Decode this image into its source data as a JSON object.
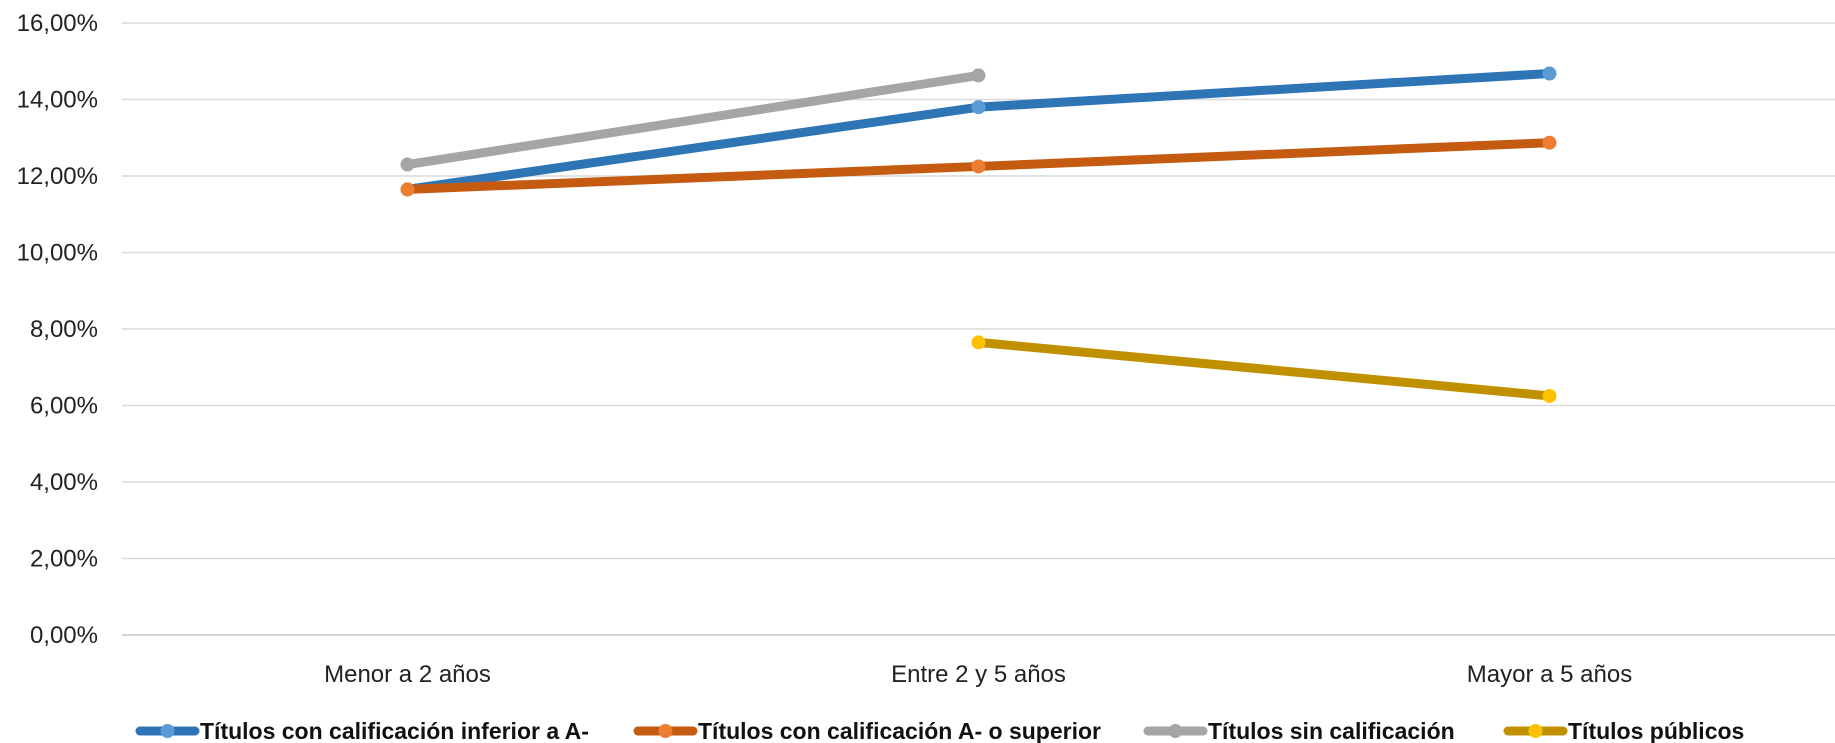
{
  "chart_data": {
    "type": "line",
    "categories": [
      "Menor a 2 años",
      "Entre 2 y 5 años",
      "Mayor a 5 años"
    ],
    "y_ticks": [
      "0,00%",
      "2,00%",
      "4,00%",
      "6,00%",
      "8,00%",
      "10,00%",
      "12,00%",
      "14,00%",
      "16,00%"
    ],
    "ylim": [
      0,
      16
    ],
    "grid": true,
    "legend_position": "bottom",
    "series": [
      {
        "name": "Títulos con calificación inferior a A-",
        "values": [
          11.65,
          13.8,
          14.68
        ],
        "color": "#2E75B6",
        "marker_color": "#5B9BD5"
      },
      {
        "name": "Títulos con calificación A- o superior",
        "values": [
          11.65,
          12.25,
          12.87
        ],
        "color": "#C55A11",
        "marker_color": "#ED7D31"
      },
      {
        "name": "Títulos sin calificación",
        "values": [
          12.3,
          14.63,
          null
        ],
        "color": "#A5A5A5",
        "marker_color": "#A5A5A5"
      },
      {
        "name": "Títulos públicos",
        "values": [
          null,
          7.65,
          6.25
        ],
        "color": "#BF9000",
        "marker_color": "#FFC000"
      }
    ]
  }
}
